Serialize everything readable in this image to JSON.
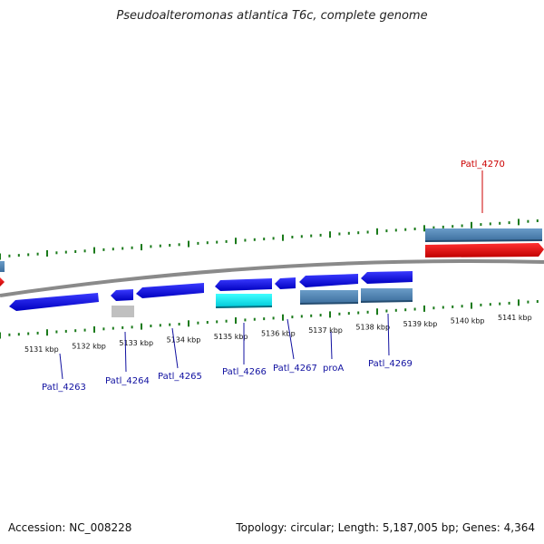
{
  "title": "Pseudoalteromonas atlantica T6c, complete genome",
  "footer": {
    "accession": "Accession: NC_008228",
    "topology": "Topology: circular; Length: 5,187,005 bp; Genes: 4,364"
  },
  "scale_labels": [
    "5131 kbp",
    "5132 kbp",
    "5133 kbp",
    "5134 kbp",
    "5135 kbp",
    "5136 kbp",
    "5137 kbp",
    "5138 kbp",
    "5139 kbp",
    "5140 kbp",
    "5141 kbp"
  ],
  "genes": [
    {
      "name": "Patl_4263",
      "strand": "-",
      "color": "#1010e0"
    },
    {
      "name": "Patl_4264",
      "strand": "-",
      "color": "#1010e0"
    },
    {
      "name": "Patl_4265",
      "strand": "-",
      "color": "#1010e0"
    },
    {
      "name": "Patl_4266",
      "strand": "-",
      "color": "#1010e0"
    },
    {
      "name": "Patl_4267",
      "strand": "-",
      "color": "#1010e0"
    },
    {
      "name": "proA",
      "strand": "-",
      "color": "#1010e0"
    },
    {
      "name": "Patl_4269",
      "strand": "-",
      "color": "#1010e0"
    },
    {
      "name": "Patl_4270",
      "strand": "+",
      "color": "#ee1111"
    }
  ],
  "colors": {
    "minus_gene": "#1010e0",
    "plus_gene": "#ee1111",
    "cds": "#4f86b8",
    "rna": "#00e8f0",
    "pseudo": "#c0c0c0",
    "ticks": "#1a7a1a",
    "backbone": "#8a8a8a",
    "minus_label": "#1010a0",
    "plus_label": "#cc0000"
  }
}
